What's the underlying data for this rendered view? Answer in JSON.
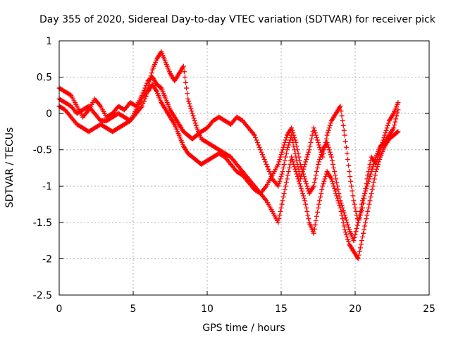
{
  "chart_data": {
    "type": "scatter",
    "title": "Day 355 of 2020, Sidereal Day-to-day VTEC variation (SDTVAR) for receiver pick",
    "xlabel": "GPS time / hours",
    "ylabel": "SDTVAR / TECUs",
    "xlim": [
      0,
      25
    ],
    "ylim": [
      -2.5,
      1
    ],
    "x_ticks": [
      0,
      5,
      10,
      15,
      20,
      25
    ],
    "x_tick_labels": [
      "0",
      "5",
      "10",
      "15",
      "20",
      "25"
    ],
    "y_ticks": [
      1,
      0.5,
      0,
      -0.5,
      -1,
      -1.5,
      -2,
      -2.5
    ],
    "y_tick_labels": [
      "1",
      "0.5",
      "0",
      "-0.5",
      "-1",
      "-1.5",
      "-2",
      "-2.5"
    ],
    "grid": true,
    "marker": "plus",
    "color": "#ff0000",
    "series": [
      {
        "name": "",
        "x": [
          0.0,
          0.4,
          0.8,
          1.2,
          1.6,
          2.0,
          2.4,
          2.8,
          3.2,
          3.6,
          4.0,
          4.4,
          4.8,
          5.2,
          5.6,
          6.0,
          6.3,
          6.6,
          6.9,
          7.2,
          7.5,
          7.8,
          8.1,
          8.4,
          8.7,
          9.0,
          9.3,
          9.6,
          10.0,
          10.4,
          10.8,
          11.2,
          11.6,
          12.0,
          12.4,
          12.8,
          13.2,
          13.6,
          14.0,
          14.4,
          14.8,
          15.1,
          15.4,
          15.7,
          16.0,
          16.3,
          16.6,
          16.9,
          17.2,
          17.5,
          17.8,
          18.1,
          18.4,
          18.7,
          19.0,
          19.3,
          19.6,
          19.9,
          20.2,
          20.5,
          20.8,
          21.1,
          21.4,
          21.7,
          22.0,
          22.3,
          22.6,
          22.9
        ],
        "y": [
          0.35,
          0.3,
          0.25,
          0.1,
          -0.05,
          0.05,
          0.2,
          0.1,
          -0.05,
          0.0,
          0.1,
          0.05,
          0.15,
          0.1,
          0.25,
          0.45,
          0.5,
          0.4,
          0.35,
          0.2,
          0.05,
          -0.05,
          -0.15,
          -0.25,
          -0.3,
          -0.35,
          -0.3,
          -0.25,
          -0.2,
          -0.1,
          -0.05,
          -0.1,
          -0.15,
          -0.05,
          -0.1,
          -0.2,
          -0.3,
          -0.5,
          -0.7,
          -0.9,
          -1.0,
          -0.8,
          -0.5,
          -0.3,
          -0.6,
          -0.9,
          -0.7,
          -0.5,
          -0.2,
          -0.4,
          -0.6,
          -0.3,
          -0.1,
          0.0,
          0.1,
          -0.3,
          -0.8,
          -1.2,
          -1.5,
          -1.3,
          -0.9,
          -0.6,
          -0.7,
          -0.5,
          -0.3,
          -0.1,
          0.0,
          0.15
        ]
      },
      {
        "name": "",
        "x": [
          0.0,
          0.4,
          0.8,
          1.2,
          1.6,
          2.0,
          2.4,
          2.8,
          3.2,
          3.6,
          4.0,
          4.4,
          4.8,
          5.2,
          5.6,
          6.0,
          6.3,
          6.6,
          6.9,
          7.2,
          7.5,
          7.8,
          8.1,
          8.4,
          8.7,
          9.0,
          9.3,
          9.6,
          10.0,
          10.4,
          10.8,
          11.2,
          11.6,
          12.0,
          12.4,
          12.8,
          13.2,
          13.6,
          14.0,
          14.4,
          14.8,
          15.1,
          15.4,
          15.7,
          16.0,
          16.3,
          16.6,
          16.9,
          17.2,
          17.5,
          17.8,
          18.1,
          18.4,
          18.7,
          19.0,
          19.3,
          19.6,
          19.9,
          20.2,
          20.5,
          20.8,
          21.1,
          21.4,
          21.7,
          22.0,
          22.3,
          22.6,
          22.9
        ],
        "y": [
          0.1,
          0.05,
          -0.05,
          -0.15,
          -0.2,
          -0.25,
          -0.2,
          -0.15,
          -0.2,
          -0.25,
          -0.2,
          -0.15,
          -0.1,
          0.05,
          0.2,
          0.35,
          0.6,
          0.75,
          0.85,
          0.7,
          0.55,
          0.45,
          0.55,
          0.65,
          0.2,
          0.0,
          -0.2,
          -0.35,
          -0.4,
          -0.45,
          -0.5,
          -0.55,
          -0.6,
          -0.7,
          -0.8,
          -0.9,
          -1.0,
          -1.1,
          -1.2,
          -1.35,
          -1.5,
          -1.2,
          -0.9,
          -0.6,
          -0.8,
          -1.0,
          -1.2,
          -1.5,
          -1.65,
          -1.3,
          -1.0,
          -0.8,
          -0.9,
          -1.1,
          -1.3,
          -1.6,
          -1.8,
          -1.9,
          -2.0,
          -1.7,
          -1.4,
          -1.1,
          -0.8,
          -0.6,
          -0.45,
          -0.35,
          -0.3,
          -0.25
        ]
      },
      {
        "name": "",
        "x": [
          0.0,
          0.4,
          0.8,
          1.2,
          1.6,
          2.0,
          2.4,
          2.8,
          3.2,
          3.6,
          4.0,
          4.4,
          4.8,
          5.2,
          5.6,
          6.0,
          6.3,
          6.6,
          6.9,
          7.2,
          7.5,
          7.8,
          8.1,
          8.4,
          8.7,
          9.0,
          9.3,
          9.6,
          10.0,
          10.4,
          10.8,
          11.2,
          11.6,
          12.0,
          12.4,
          12.8,
          13.2,
          13.6,
          14.0,
          14.4,
          14.8,
          15.1,
          15.4,
          15.7,
          16.0,
          16.3,
          16.6,
          16.9,
          17.2,
          17.5,
          17.8,
          18.1,
          18.4,
          18.7,
          19.0,
          19.3,
          19.6,
          19.9,
          20.2,
          20.5,
          20.8,
          21.1,
          21.4,
          21.7,
          22.0,
          22.3,
          22.6,
          22.9
        ],
        "y": [
          0.2,
          0.15,
          0.1,
          0.0,
          0.05,
          0.1,
          0.0,
          -0.1,
          -0.1,
          -0.05,
          0.0,
          -0.05,
          -0.1,
          0.0,
          0.1,
          0.3,
          0.4,
          0.3,
          0.15,
          0.05,
          -0.05,
          -0.15,
          -0.3,
          -0.45,
          -0.55,
          -0.6,
          -0.65,
          -0.7,
          -0.65,
          -0.6,
          -0.55,
          -0.6,
          -0.7,
          -0.8,
          -0.85,
          -0.95,
          -1.05,
          -1.1,
          -1.0,
          -0.85,
          -0.7,
          -0.5,
          -0.3,
          -0.2,
          -0.4,
          -0.7,
          -0.9,
          -1.1,
          -1.0,
          -0.7,
          -0.5,
          -0.4,
          -0.6,
          -0.9,
          -1.2,
          -1.4,
          -1.6,
          -1.75,
          -1.5,
          -1.2,
          -1.0,
          -0.8,
          -0.6,
          -0.45,
          -0.4,
          -0.3,
          -0.2,
          0.05
        ]
      }
    ]
  }
}
